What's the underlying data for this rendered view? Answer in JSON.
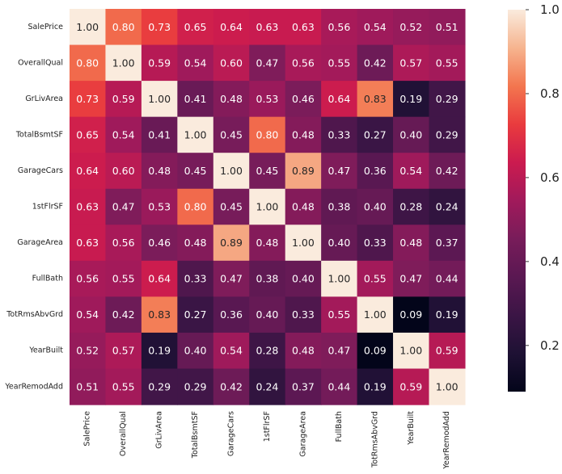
{
  "chart_data": {
    "type": "heatmap",
    "title": "",
    "xlabel": "",
    "ylabel": "",
    "labels": [
      "SalePrice",
      "OverallQual",
      "GrLivArea",
      "TotalBsmtSF",
      "GarageCars",
      "1stFlrSF",
      "GarageArea",
      "FullBath",
      "TotRmsAbvGrd",
      "YearBuilt",
      "YearRemodAdd"
    ],
    "values": [
      [
        1.0,
        0.8,
        0.73,
        0.65,
        0.64,
        0.63,
        0.63,
        0.56,
        0.54,
        0.52,
        0.51
      ],
      [
        0.8,
        1.0,
        0.59,
        0.54,
        0.6,
        0.47,
        0.56,
        0.55,
        0.42,
        0.57,
        0.55
      ],
      [
        0.73,
        0.59,
        1.0,
        0.41,
        0.48,
        0.53,
        0.46,
        0.64,
        0.83,
        0.19,
        0.29
      ],
      [
        0.65,
        0.54,
        0.41,
        1.0,
        0.45,
        0.8,
        0.48,
        0.33,
        0.27,
        0.4,
        0.29
      ],
      [
        0.64,
        0.6,
        0.48,
        0.45,
        1.0,
        0.45,
        0.89,
        0.47,
        0.36,
        0.54,
        0.42
      ],
      [
        0.63,
        0.47,
        0.53,
        0.8,
        0.45,
        1.0,
        0.48,
        0.38,
        0.4,
        0.28,
        0.24
      ],
      [
        0.63,
        0.56,
        0.46,
        0.48,
        0.89,
        0.48,
        1.0,
        0.4,
        0.33,
        0.48,
        0.37
      ],
      [
        0.56,
        0.55,
        0.64,
        0.33,
        0.47,
        0.38,
        0.4,
        1.0,
        0.55,
        0.47,
        0.44
      ],
      [
        0.54,
        0.42,
        0.83,
        0.27,
        0.36,
        0.4,
        0.33,
        0.55,
        1.0,
        0.09,
        0.19
      ],
      [
        0.52,
        0.57,
        0.19,
        0.4,
        0.54,
        0.28,
        0.48,
        0.47,
        0.09,
        1.0,
        0.59
      ],
      [
        0.51,
        0.55,
        0.29,
        0.29,
        0.42,
        0.24,
        0.37,
        0.44,
        0.19,
        0.59,
        1.0
      ]
    ],
    "colorbar": {
      "vmin": 0.09,
      "vmax": 1.0,
      "ticks": [
        0.2,
        0.4,
        0.6,
        0.8,
        1.0
      ],
      "tick_labels": [
        "0.2",
        "0.4",
        "0.6",
        "0.8",
        "1.0"
      ],
      "colormap": "rocket"
    },
    "annotation_format": "0.00"
  }
}
